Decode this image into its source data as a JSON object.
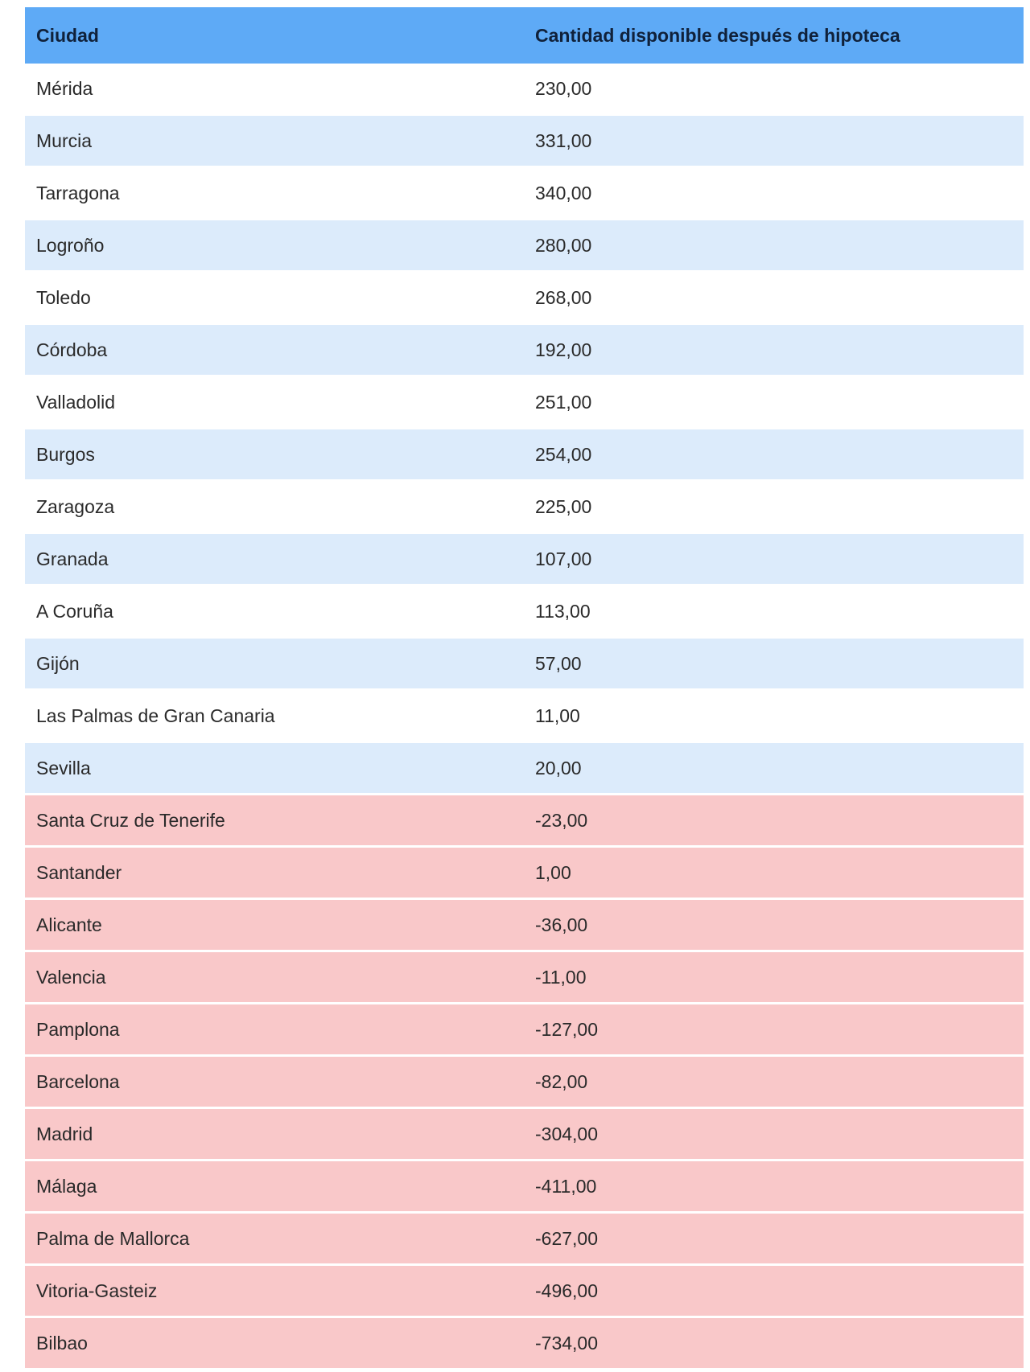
{
  "table": {
    "headers": [
      "Ciudad",
      "Cantidad disponible después de hipoteca"
    ],
    "colors": {
      "header": "#5eaaf6",
      "alt_row": "#dcebfb",
      "negative_row": "#f9c8c9"
    },
    "rows": [
      {
        "city": "Mérida",
        "amount": "230,00",
        "style": "white"
      },
      {
        "city": "Murcia",
        "amount": "331,00",
        "style": "blue"
      },
      {
        "city": "Tarragona",
        "amount": "340,00",
        "style": "white"
      },
      {
        "city": "Logroño",
        "amount": "280,00",
        "style": "blue"
      },
      {
        "city": "Toledo",
        "amount": "268,00",
        "style": "white"
      },
      {
        "city": "Córdoba",
        "amount": "192,00",
        "style": "blue"
      },
      {
        "city": "Valladolid",
        "amount": "251,00",
        "style": "white"
      },
      {
        "city": "Burgos",
        "amount": "254,00",
        "style": "blue"
      },
      {
        "city": "Zaragoza",
        "amount": "225,00",
        "style": "white"
      },
      {
        "city": "Granada",
        "amount": "107,00",
        "style": "blue"
      },
      {
        "city": "A Coruña",
        "amount": "113,00",
        "style": "white"
      },
      {
        "city": "Gijón",
        "amount": "57,00",
        "style": "blue"
      },
      {
        "city": "Las Palmas de Gran Canaria",
        "amount": "11,00",
        "style": "white"
      },
      {
        "city": "Sevilla",
        "amount": "20,00",
        "style": "blue"
      },
      {
        "city": "Santa Cruz de Tenerife",
        "amount": "-23,00",
        "style": "red"
      },
      {
        "city": "Santander",
        "amount": "1,00",
        "style": "red"
      },
      {
        "city": "Alicante",
        "amount": "-36,00",
        "style": "red"
      },
      {
        "city": "Valencia",
        "amount": "-11,00",
        "style": "red"
      },
      {
        "city": "Pamplona",
        "amount": "-127,00",
        "style": "red"
      },
      {
        "city": "Barcelona",
        "amount": "-82,00",
        "style": "red"
      },
      {
        "city": "Madrid",
        "amount": "-304,00",
        "style": "red"
      },
      {
        "city": "Málaga",
        "amount": "-411,00",
        "style": "red"
      },
      {
        "city": "Palma de Mallorca",
        "amount": "-627,00",
        "style": "red"
      },
      {
        "city": "Vitoria-Gasteiz",
        "amount": "-496,00",
        "style": "red"
      },
      {
        "city": "Bilbao",
        "amount": "-734,00",
        "style": "red"
      }
    ]
  }
}
